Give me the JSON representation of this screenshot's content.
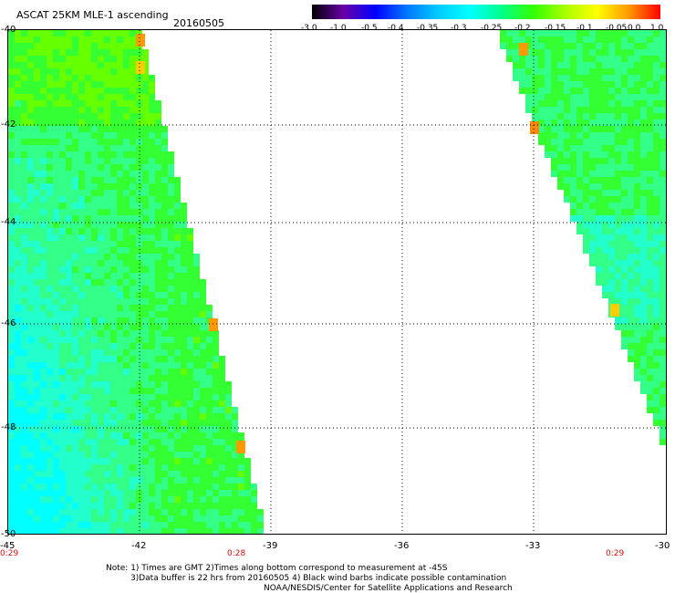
{
  "header": {
    "title": "ASCAT 25KM MLE-1 ascending",
    "date": "20160505"
  },
  "colorbar": {
    "labels": [
      "-3.0",
      "-1.0",
      "-0.5",
      "-0.4",
      "-0.35",
      "-0.3",
      "-0.25",
      "-0.2",
      "-0.15",
      "-0.1",
      "-0.05",
      "0.0",
      "1.0"
    ],
    "colors": [
      "#000000",
      "#6a00a8",
      "#0000ff",
      "#0078ff",
      "#00ccff",
      "#00ffff",
      "#00ff88",
      "#33ff00",
      "#aaff00",
      "#ffff00",
      "#ff9900",
      "#ff0000"
    ]
  },
  "map": {
    "lat_labels": [
      "-40",
      "-42",
      "-44",
      "-46",
      "-48",
      "-50"
    ],
    "lon_labels": [
      "-45",
      "-42",
      "-39",
      "-36",
      "-33",
      "-30"
    ],
    "time_labels": [
      "0:29",
      "0:28",
      "0:29"
    ]
  },
  "notes": {
    "line1": "Note: 1) Times are GMT 2)Times along bottom correspond to measurement at -45S",
    "line2": "3)Data buffer is 22 hrs from 20160505 4) Black wind barbs indicate possible contamination",
    "line3": "NOAA/NESDIS/Center for Satellite Applications and Research"
  }
}
